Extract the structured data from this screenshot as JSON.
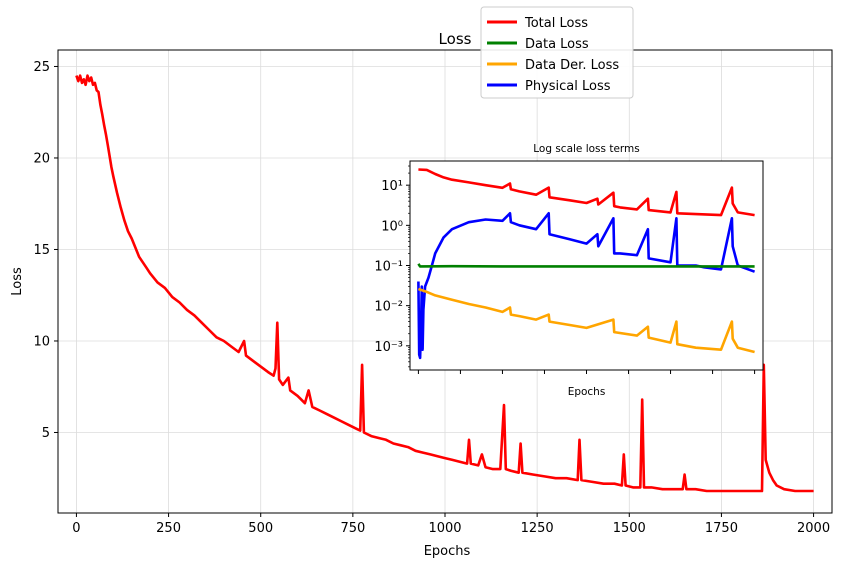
{
  "chart_data": [
    {
      "type": "line",
      "title": "Loss",
      "xlabel": "Epochs",
      "ylabel": "Loss",
      "xlim": [
        -50,
        2050
      ],
      "ylim": [
        0.6,
        25.9
      ],
      "xticks": [
        0,
        250,
        500,
        750,
        1000,
        1250,
        1500,
        1750,
        2000
      ],
      "yticks": [
        5,
        10,
        15,
        20,
        25
      ],
      "grid": true,
      "series": [
        {
          "name": "Total Loss",
          "color": "#ff0000",
          "points": [
            [
              0,
              24.5
            ],
            [
              5,
              24.2
            ],
            [
              10,
              24.5
            ],
            [
              15,
              24.1
            ],
            [
              20,
              24.3
            ],
            [
              25,
              24.0
            ],
            [
              30,
              24.5
            ],
            [
              35,
              24.2
            ],
            [
              40,
              24.4
            ],
            [
              45,
              24.0
            ],
            [
              50,
              24.1
            ],
            [
              55,
              23.7
            ],
            [
              60,
              23.6
            ],
            [
              65,
              22.9
            ],
            [
              70,
              22.4
            ],
            [
              75,
              21.8
            ],
            [
              80,
              21.3
            ],
            [
              85,
              20.7
            ],
            [
              90,
              20.1
            ],
            [
              95,
              19.5
            ],
            [
              100,
              19.0
            ],
            [
              110,
              18.1
            ],
            [
              120,
              17.3
            ],
            [
              130,
              16.6
            ],
            [
              140,
              16.0
            ],
            [
              150,
              15.6
            ],
            [
              160,
              15.1
            ],
            [
              170,
              14.6
            ],
            [
              180,
              14.3
            ],
            [
              190,
              14.0
            ],
            [
              200,
              13.7
            ],
            [
              220,
              13.2
            ],
            [
              240,
              12.9
            ],
            [
              260,
              12.4
            ],
            [
              280,
              12.1
            ],
            [
              300,
              11.7
            ],
            [
              320,
              11.4
            ],
            [
              340,
              11.0
            ],
            [
              360,
              10.6
            ],
            [
              380,
              10.2
            ],
            [
              400,
              10.0
            ],
            [
              420,
              9.7
            ],
            [
              440,
              9.4
            ],
            [
              455,
              10.0
            ],
            [
              460,
              9.2
            ],
            [
              480,
              8.9
            ],
            [
              500,
              8.6
            ],
            [
              520,
              8.3
            ],
            [
              535,
              8.1
            ],
            [
              540,
              8.5
            ],
            [
              545,
              11.0
            ],
            [
              550,
              7.9
            ],
            [
              560,
              7.6
            ],
            [
              575,
              8.0
            ],
            [
              580,
              7.3
            ],
            [
              600,
              7.0
            ],
            [
              620,
              6.6
            ],
            [
              630,
              7.3
            ],
            [
              640,
              6.4
            ],
            [
              660,
              6.2
            ],
            [
              680,
              6.0
            ],
            [
              700,
              5.8
            ],
            [
              720,
              5.6
            ],
            [
              740,
              5.4
            ],
            [
              760,
              5.2
            ],
            [
              770,
              5.1
            ],
            [
              775,
              8.7
            ],
            [
              780,
              5.0
            ],
            [
              800,
              4.8
            ],
            [
              820,
              4.7
            ],
            [
              840,
              4.6
            ],
            [
              860,
              4.4
            ],
            [
              880,
              4.3
            ],
            [
              900,
              4.2
            ],
            [
              920,
              4.0
            ],
            [
              940,
              3.9
            ],
            [
              960,
              3.8
            ],
            [
              980,
              3.7
            ],
            [
              1000,
              3.6
            ],
            [
              1020,
              3.5
            ],
            [
              1040,
              3.4
            ],
            [
              1060,
              3.3
            ],
            [
              1065,
              4.6
            ],
            [
              1070,
              3.3
            ],
            [
              1090,
              3.2
            ],
            [
              1100,
              3.8
            ],
            [
              1110,
              3.1
            ],
            [
              1130,
              3.0
            ],
            [
              1150,
              3.0
            ],
            [
              1160,
              6.5
            ],
            [
              1165,
              3.0
            ],
            [
              1180,
              2.9
            ],
            [
              1200,
              2.8
            ],
            [
              1205,
              4.4
            ],
            [
              1210,
              2.8
            ],
            [
              1240,
              2.7
            ],
            [
              1270,
              2.6
            ],
            [
              1300,
              2.5
            ],
            [
              1330,
              2.5
            ],
            [
              1360,
              2.4
            ],
            [
              1365,
              4.6
            ],
            [
              1370,
              2.4
            ],
            [
              1400,
              2.3
            ],
            [
              1430,
              2.2
            ],
            [
              1460,
              2.2
            ],
            [
              1480,
              2.1
            ],
            [
              1485,
              3.8
            ],
            [
              1490,
              2.1
            ],
            [
              1510,
              2.0
            ],
            [
              1530,
              2.0
            ],
            [
              1535,
              6.8
            ],
            [
              1540,
              2.0
            ],
            [
              1560,
              2.0
            ],
            [
              1590,
              1.9
            ],
            [
              1620,
              1.9
            ],
            [
              1645,
              1.9
            ],
            [
              1650,
              2.7
            ],
            [
              1655,
              1.9
            ],
            [
              1680,
              1.9
            ],
            [
              1710,
              1.8
            ],
            [
              1740,
              1.8
            ],
            [
              1770,
              1.8
            ],
            [
              1800,
              1.8
            ],
            [
              1830,
              1.8
            ],
            [
              1860,
              1.8
            ],
            [
              1865,
              8.7
            ],
            [
              1870,
              3.5
            ],
            [
              1880,
              2.8
            ],
            [
              1890,
              2.4
            ],
            [
              1900,
              2.1
            ],
            [
              1920,
              1.9
            ],
            [
              1950,
              1.8
            ],
            [
              1980,
              1.8
            ],
            [
              2000,
              1.8
            ]
          ]
        }
      ],
      "legend": {
        "placement": "top",
        "entries": [
          {
            "label": "Total Loss",
            "color": "#ff0000"
          },
          {
            "label": "Data Loss",
            "color": "#008000"
          },
          {
            "label": "Data Der. Loss",
            "color": "#ffa500"
          },
          {
            "label": "Physical Loss",
            "color": "#0000ff"
          }
        ]
      }
    },
    {
      "type": "line",
      "title": "Log scale loss terms",
      "xlabel": "Epochs",
      "ylabel": "",
      "yscale": "log",
      "xlim": [
        -50,
        2050
      ],
      "ylim": [
        0.00025,
        40
      ],
      "yticks": [
        0.001,
        0.01,
        0.1,
        1,
        10
      ],
      "ytick_labels": [
        "10⁻³",
        "10⁻²",
        "10⁻¹",
        "10⁰",
        "10¹"
      ],
      "grid": false,
      "series": [
        {
          "name": "Total Loss",
          "color": "#ff0000",
          "points": [
            [
              0,
              24.5
            ],
            [
              50,
              24.0
            ],
            [
              100,
              19.0
            ],
            [
              150,
              15.6
            ],
            [
              200,
              13.7
            ],
            [
              300,
              11.7
            ],
            [
              400,
              10.0
            ],
            [
              500,
              8.6
            ],
            [
              545,
              11.0
            ],
            [
              550,
              7.9
            ],
            [
              600,
              7.0
            ],
            [
              700,
              5.8
            ],
            [
              775,
              8.7
            ],
            [
              780,
              5.0
            ],
            [
              900,
              4.2
            ],
            [
              1000,
              3.6
            ],
            [
              1065,
              4.6
            ],
            [
              1070,
              3.3
            ],
            [
              1160,
              6.5
            ],
            [
              1165,
              3.0
            ],
            [
              1200,
              2.8
            ],
            [
              1300,
              2.5
            ],
            [
              1365,
              4.6
            ],
            [
              1370,
              2.4
            ],
            [
              1500,
              2.1
            ],
            [
              1535,
              6.8
            ],
            [
              1540,
              2.0
            ],
            [
              1650,
              1.9
            ],
            [
              1800,
              1.8
            ],
            [
              1865,
              8.7
            ],
            [
              1870,
              3.5
            ],
            [
              1900,
              2.1
            ],
            [
              2000,
              1.8
            ]
          ]
        },
        {
          "name": "Data Loss",
          "color": "#008000",
          "points": [
            [
              0,
              0.11
            ],
            [
              10,
              0.095
            ],
            [
              200,
              0.096
            ],
            [
              500,
              0.095
            ],
            [
              1000,
              0.095
            ],
            [
              1500,
              0.095
            ],
            [
              1800,
              0.095
            ],
            [
              2000,
              0.095
            ]
          ]
        },
        {
          "name": "Data Der. Loss",
          "color": "#ffa500",
          "points": [
            [
              0,
              0.026
            ],
            [
              50,
              0.022
            ],
            [
              100,
              0.018
            ],
            [
              200,
              0.014
            ],
            [
              300,
              0.011
            ],
            [
              400,
              0.009
            ],
            [
              500,
              0.007
            ],
            [
              545,
              0.009
            ],
            [
              550,
              0.006
            ],
            [
              600,
              0.0055
            ],
            [
              700,
              0.0045
            ],
            [
              775,
              0.006
            ],
            [
              780,
              0.004
            ],
            [
              900,
              0.0033
            ],
            [
              1000,
              0.0028
            ],
            [
              1160,
              0.0045
            ],
            [
              1165,
              0.0022
            ],
            [
              1300,
              0.0018
            ],
            [
              1365,
              0.003
            ],
            [
              1370,
              0.0016
            ],
            [
              1500,
              0.0012
            ],
            [
              1535,
              0.004
            ],
            [
              1540,
              0.0011
            ],
            [
              1650,
              0.0009
            ],
            [
              1800,
              0.0008
            ],
            [
              1865,
              0.004
            ],
            [
              1870,
              0.0015
            ],
            [
              1900,
              0.0009
            ],
            [
              2000,
              0.0007
            ]
          ]
        },
        {
          "name": "Physical Loss",
          "color": "#0000ff",
          "points": [
            [
              0,
              0.04
            ],
            [
              5,
              0.0006
            ],
            [
              10,
              0.0005
            ],
            [
              15,
              0.002
            ],
            [
              20,
              0.03
            ],
            [
              25,
              0.0008
            ],
            [
              30,
              0.008
            ],
            [
              40,
              0.03
            ],
            [
              60,
              0.05
            ],
            [
              80,
              0.1
            ],
            [
              100,
              0.2
            ],
            [
              150,
              0.5
            ],
            [
              200,
              0.8
            ],
            [
              300,
              1.2
            ],
            [
              400,
              1.4
            ],
            [
              500,
              1.3
            ],
            [
              545,
              2.0
            ],
            [
              550,
              1.2
            ],
            [
              600,
              1.0
            ],
            [
              700,
              0.8
            ],
            [
              775,
              2.0
            ],
            [
              780,
              0.6
            ],
            [
              900,
              0.45
            ],
            [
              1000,
              0.35
            ],
            [
              1065,
              0.6
            ],
            [
              1070,
              0.3
            ],
            [
              1160,
              1.5
            ],
            [
              1165,
              0.2
            ],
            [
              1200,
              0.2
            ],
            [
              1300,
              0.18
            ],
            [
              1365,
              0.8
            ],
            [
              1370,
              0.15
            ],
            [
              1500,
              0.12
            ],
            [
              1535,
              1.5
            ],
            [
              1540,
              0.1
            ],
            [
              1650,
              0.1
            ],
            [
              1700,
              0.09
            ],
            [
              1800,
              0.08
            ],
            [
              1865,
              1.5
            ],
            [
              1870,
              0.3
            ],
            [
              1900,
              0.1
            ],
            [
              2000,
              0.07
            ]
          ]
        }
      ]
    }
  ]
}
